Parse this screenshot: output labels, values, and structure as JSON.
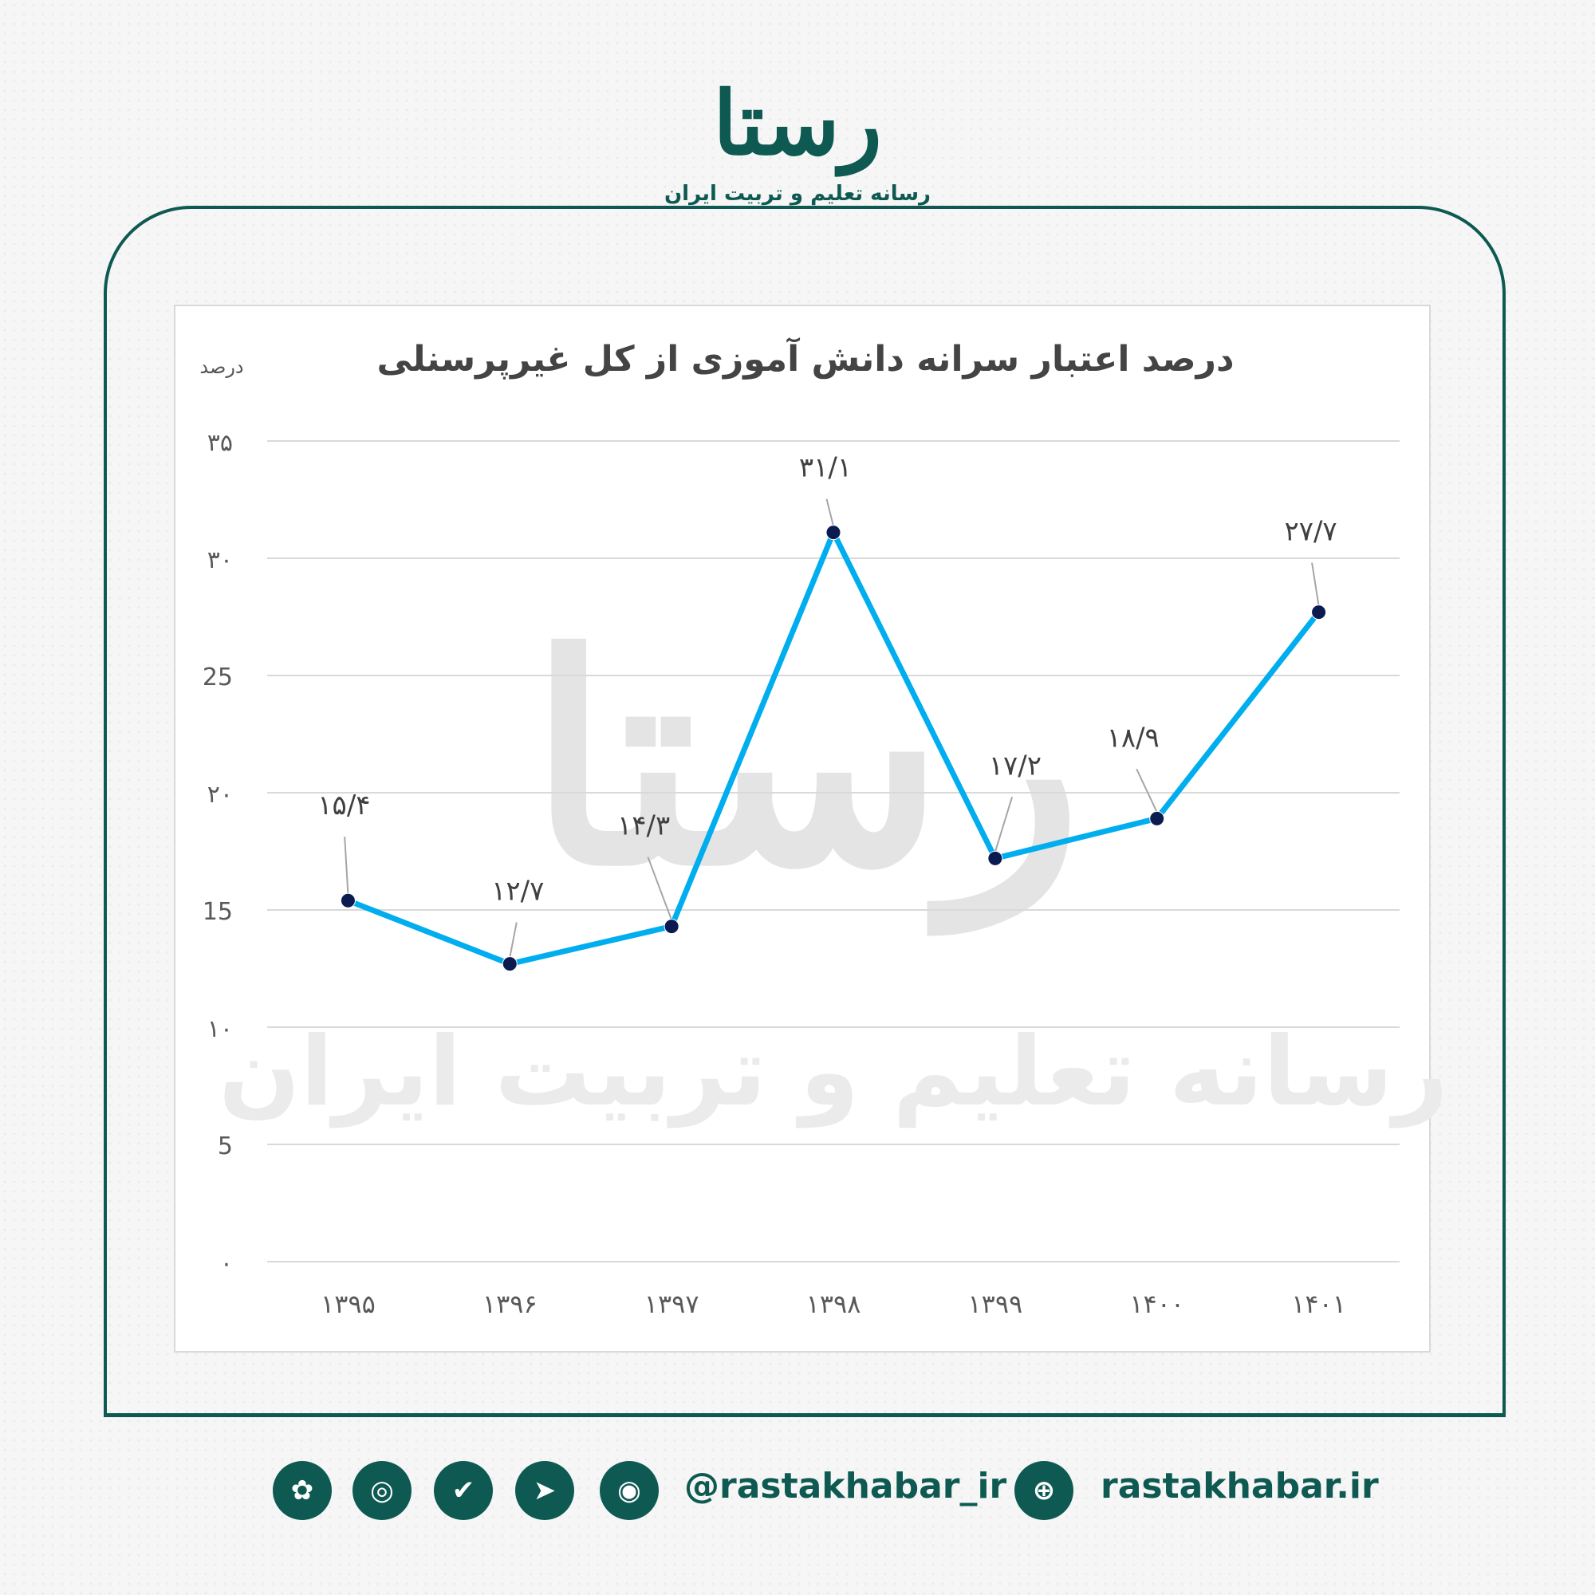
{
  "brand": {
    "logo_text": "رستا",
    "tagline": "رسانه تعلیم و تربیت ایران"
  },
  "watermark": {
    "logo_text": "رستا",
    "text": "رسانه تعلیم و تربیت ایران"
  },
  "footer": {
    "handle": "@rastakhabar_ir",
    "website": "rastakhabar.ir",
    "icons": [
      "rubika-icon",
      "instagram-icon",
      "bale-icon",
      "telegram-icon",
      "eitaa-icon",
      "globe-icon"
    ]
  },
  "colors": {
    "brand": "#0e5a52",
    "line": "#00aeef",
    "marker": "#0b1b4f"
  },
  "chart_data": {
    "type": "line",
    "title": "درصد اعتبار سرانه دانش آموزی از کل غیرپرسنلی",
    "ylabel": "درصد",
    "xlabel": "",
    "categories": [
      "۱۳۹۵",
      "۱۳۹۶",
      "۱۳۹۷",
      "۱۳۹۸",
      "۱۳۹۹",
      "۱۴۰۰",
      "۱۴۰۱"
    ],
    "values": [
      15.4,
      12.7,
      14.3,
      31.1,
      17.2,
      18.9,
      27.7
    ],
    "data_labels": [
      "۱۵/۴",
      "۱۲/۷",
      "۱۴/۳",
      "۳۱/۱",
      "۱۷/۲",
      "۱۸/۹",
      "۲۷/۷"
    ],
    "yticks": [
      0,
      5,
      10,
      15,
      20,
      25,
      30,
      35
    ],
    "ytick_labels": [
      "۰",
      "5",
      "۱۰",
      "15",
      "۲۰",
      "25",
      "۳۰",
      "۳۵"
    ],
    "ylim": [
      0,
      35
    ],
    "grid": true,
    "legend": "none"
  }
}
